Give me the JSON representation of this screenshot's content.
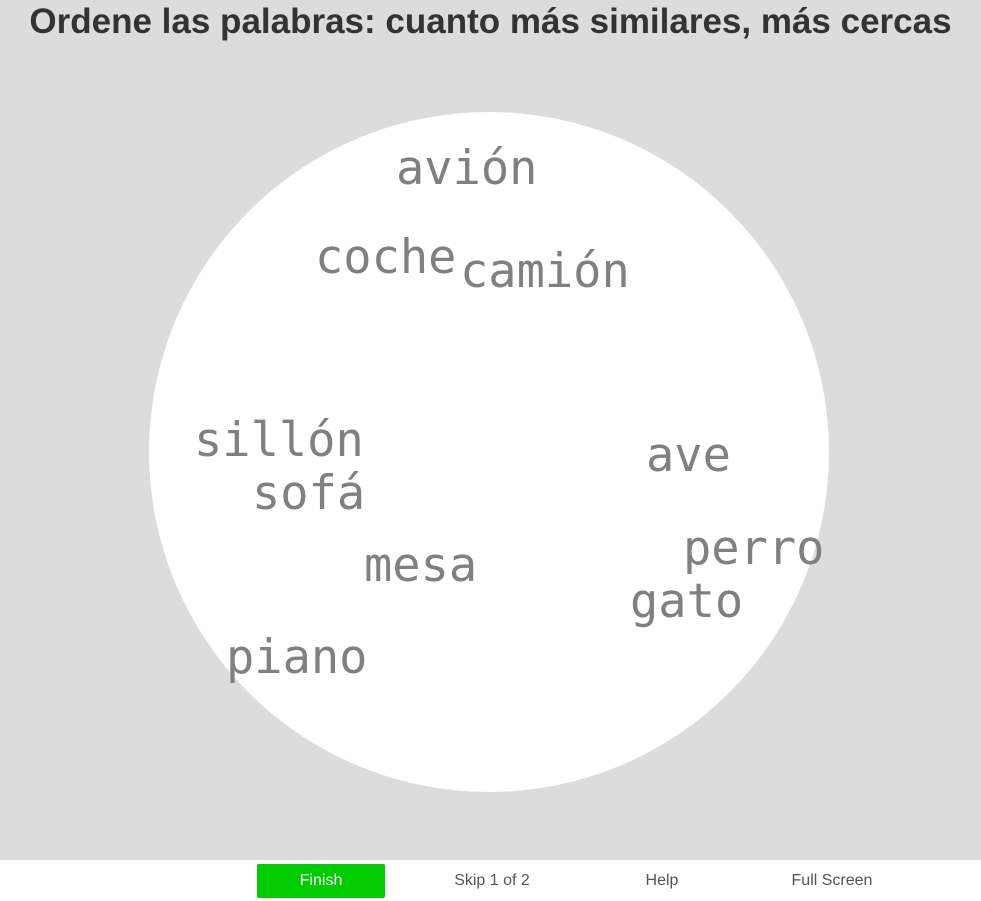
{
  "title": "Ordene las palabras: cuanto más similares, más cercas",
  "words": [
    {
      "id": "avion",
      "label": "avión"
    },
    {
      "id": "coche",
      "label": "coche"
    },
    {
      "id": "camion",
      "label": "camión"
    },
    {
      "id": "sillon",
      "label": "sillón"
    },
    {
      "id": "sofa",
      "label": "sofá"
    },
    {
      "id": "ave",
      "label": "ave"
    },
    {
      "id": "perro",
      "label": "perro"
    },
    {
      "id": "mesa",
      "label": "mesa"
    },
    {
      "id": "gato",
      "label": "gato"
    },
    {
      "id": "piano",
      "label": "piano"
    }
  ],
  "buttons": {
    "finish": "Finish",
    "skip": "Skip 1 of 2",
    "help": "Help",
    "fullscreen": "Full Screen"
  },
  "colors": {
    "stage_background": "#dcdcdc",
    "arena_background": "#ffffff",
    "word_color": "#808080",
    "finish_button": "#00cc00"
  }
}
